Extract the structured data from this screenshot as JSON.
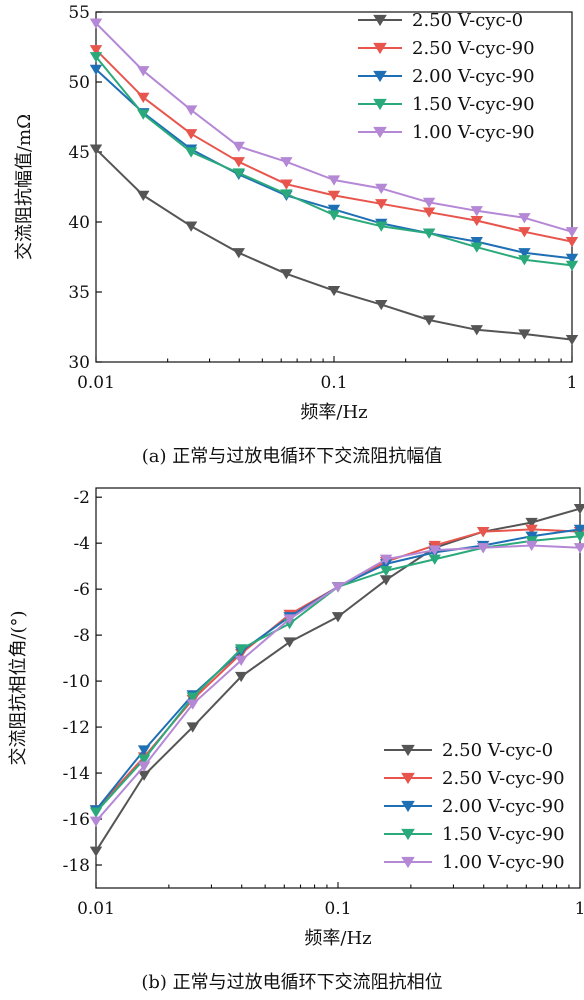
{
  "series_colors": [
    "#555555",
    "#e8554d",
    "#1f6fb5",
    "#2aaa7a",
    "#b588d6"
  ],
  "chart_data": [
    {
      "type": "line",
      "xscale": "log",
      "xlim": [
        0.01,
        1
      ],
      "ylim": [
        30,
        55
      ],
      "xticks": [
        0.01,
        0.1,
        1
      ],
      "xtick_labels": [
        "0.01",
        "0.1",
        "1"
      ],
      "yticks": [
        30,
        35,
        40,
        45,
        50,
        55
      ],
      "ytick_labels": [
        "30",
        "35",
        "40",
        "45",
        "50",
        "55"
      ],
      "xlabel": "频率/Hz",
      "ylabel": "交流阻抗幅值/mΩ",
      "caption": "(a) 正常与过放电循环下交流阻抗幅值",
      "legend_position": "top-right",
      "x": [
        0.01,
        0.0158,
        0.0251,
        0.0398,
        0.0631,
        0.1,
        0.158,
        0.251,
        0.398,
        0.631,
        1.0
      ],
      "series": [
        {
          "name": "2.50 V-cyc-0",
          "values": [
            45.2,
            41.9,
            39.7,
            37.8,
            36.3,
            35.1,
            34.1,
            33.0,
            32.3,
            32.0,
            31.6
          ]
        },
        {
          "name": "2.50 V-cyc-90",
          "values": [
            52.3,
            48.9,
            46.3,
            44.3,
            42.7,
            41.9,
            41.3,
            40.7,
            40.1,
            39.3,
            38.6
          ]
        },
        {
          "name": "2.00 V-cyc-90",
          "values": [
            50.9,
            47.8,
            45.2,
            43.4,
            41.9,
            40.9,
            39.9,
            39.2,
            38.6,
            37.8,
            37.4
          ]
        },
        {
          "name": "1.50 V-cyc-90",
          "values": [
            51.8,
            47.7,
            45.0,
            43.5,
            42.0,
            40.5,
            39.7,
            39.2,
            38.2,
            37.3,
            36.9
          ]
        },
        {
          "name": "1.00 V-cyc-90",
          "values": [
            54.2,
            50.8,
            48.0,
            45.4,
            44.3,
            43.0,
            42.4,
            41.4,
            40.8,
            40.3,
            39.3
          ]
        }
      ]
    },
    {
      "type": "line",
      "xscale": "log",
      "xlim": [
        0.01,
        1
      ],
      "ylim": [
        -19,
        -1.6
      ],
      "xticks": [
        0.01,
        0.1,
        1
      ],
      "xtick_labels": [
        "0.01",
        "0.1",
        "1"
      ],
      "yticks": [
        -18,
        -16,
        -14,
        -12,
        -10,
        -8,
        -6,
        -4,
        -2
      ],
      "ytick_labels": [
        "-18",
        "-16",
        "-14",
        "-12",
        "-10",
        "-8",
        "-6",
        "-4",
        "-2"
      ],
      "xlabel": "频率/Hz",
      "ylabel": "交流阻抗相位角/(°)",
      "caption": "(b) 正常与过放电循环下交流阻抗相位",
      "legend_position": "bottom-right",
      "x": [
        0.01,
        0.0158,
        0.0251,
        0.0398,
        0.0631,
        0.1,
        0.158,
        0.251,
        0.398,
        0.631,
        1.0
      ],
      "series": [
        {
          "name": "2.50 V-cyc-0",
          "values": [
            -17.4,
            -14.1,
            -12.0,
            -9.8,
            -8.3,
            -7.2,
            -5.6,
            -4.2,
            -3.5,
            -3.1,
            -2.5
          ]
        },
        {
          "name": "2.50 V-cyc-90",
          "values": [
            -15.6,
            -13.3,
            -10.8,
            -8.8,
            -7.1,
            -5.9,
            -4.8,
            -4.1,
            -3.5,
            -3.4,
            -3.5
          ]
        },
        {
          "name": "2.00 V-cyc-90",
          "values": [
            -15.6,
            -13.0,
            -10.6,
            -8.7,
            -7.2,
            -5.9,
            -4.9,
            -4.4,
            -4.1,
            -3.7,
            -3.4
          ]
        },
        {
          "name": "1.50 V-cyc-90",
          "values": [
            -15.7,
            -13.4,
            -10.7,
            -8.6,
            -7.5,
            -5.9,
            -5.2,
            -4.7,
            -4.2,
            -3.9,
            -3.7
          ]
        },
        {
          "name": "1.00 V-cyc-90",
          "values": [
            -16.1,
            -13.7,
            -11.0,
            -9.1,
            -7.3,
            -5.9,
            -4.7,
            -4.3,
            -4.2,
            -4.1,
            -4.2
          ]
        }
      ]
    }
  ]
}
